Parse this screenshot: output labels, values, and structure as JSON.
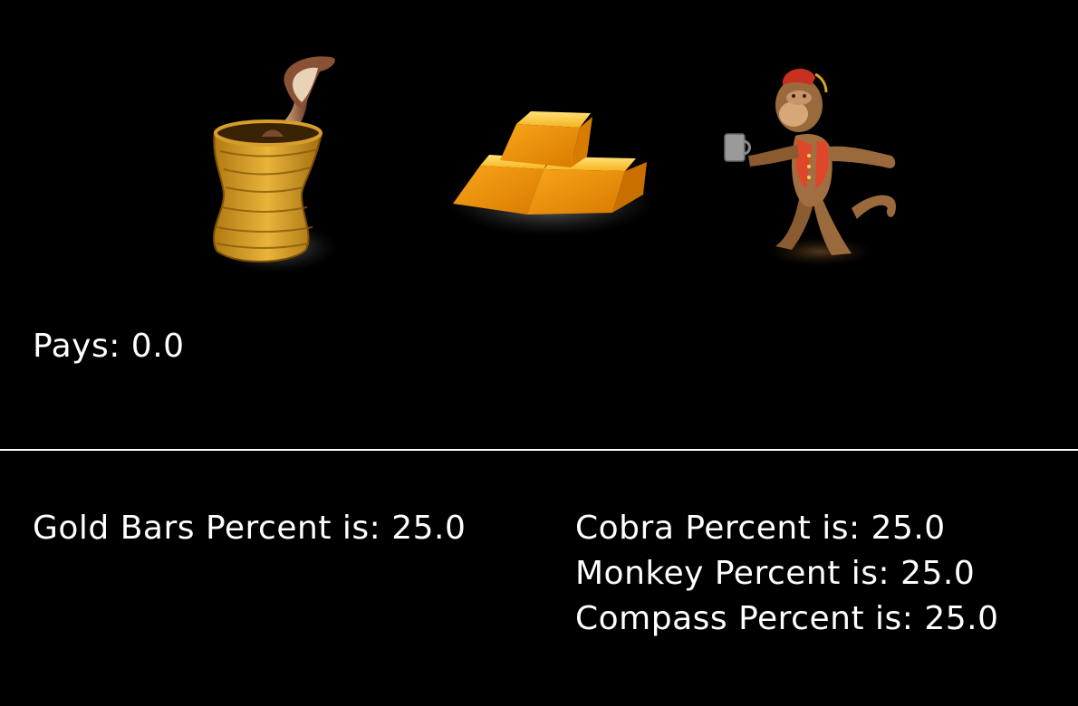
{
  "reels": [
    {
      "symbol": "cobra-basket-icon"
    },
    {
      "symbol": "gold-bars-icon"
    },
    {
      "symbol": "monkey-icon"
    }
  ],
  "pays_text": "Pays: 0.0",
  "percentages": {
    "gold_bars": "Gold Bars Percent is: 25.0",
    "cobra": "Cobra Percent is: 25.0",
    "monkey": "Monkey Percent is: 25.0",
    "compass": "Compass Percent is: 25.0"
  },
  "colors": {
    "background": "#000000",
    "text": "#ffffff",
    "gold": "#f5a623"
  }
}
